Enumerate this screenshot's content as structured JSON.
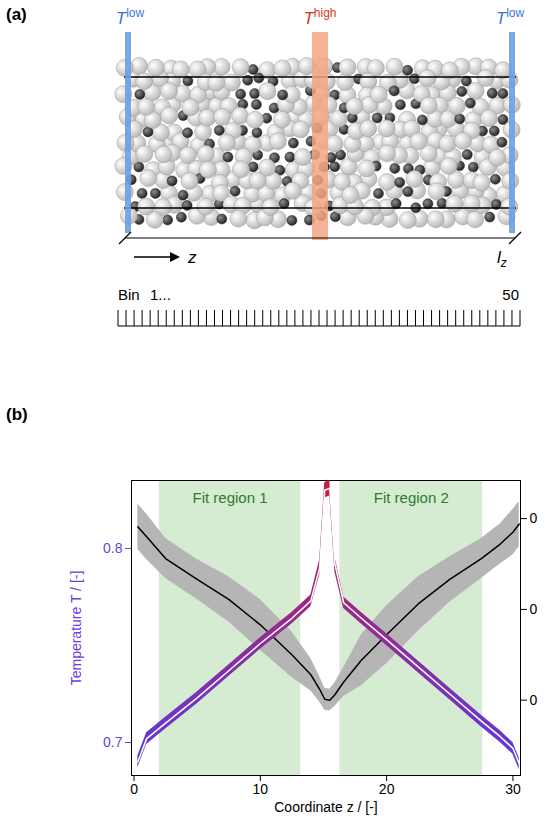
{
  "figure": {
    "panel_a": {
      "label": "(a)",
      "boundary_labels": [
        {
          "text": "T",
          "sup": "low"
        },
        {
          "text": "T",
          "sup": "high"
        },
        {
          "text": "T",
          "sup": "low"
        }
      ],
      "direction_label": "z",
      "length_label": {
        "text": "l",
        "sub": "z"
      },
      "bin_title": "Bin",
      "bin_first": "1...",
      "bin_count": 50
    },
    "panel_b_label": "(b)"
  },
  "chart_data": {
    "type": "line",
    "x_label": "Coordinate z / [-]",
    "y_label": "Temperature T / [-]",
    "xlim": [
      -0.2,
      30.6
    ],
    "xticks": [
      0,
      10,
      20,
      30
    ],
    "ylim": [
      0.683,
      0.835
    ],
    "yticks": [
      0.7,
      0.8
    ],
    "y2lim": [
      0.017,
      0.342
    ],
    "y2ticks": [
      {
        "value": 0.1,
        "label": "0"
      },
      {
        "value": 0.2,
        "label": "0"
      },
      {
        "value": 0.3,
        "label": "0"
      }
    ],
    "annotations": [
      {
        "text": "Fit region 1",
        "x_start": 2,
        "x_end": 13.2
      },
      {
        "text": "Fit region 2",
        "x_start": 16.3,
        "x_end": 27.6
      }
    ],
    "x": [
      0.3,
      1,
      2.5,
      5,
      7.5,
      10,
      12.5,
      14,
      14.7,
      15.1,
      15.5,
      15.9,
      16.6,
      18,
      20,
      22.5,
      25,
      27.5,
      29,
      30,
      30.5
    ],
    "series": [
      {
        "color": "#cc1a3f",
        "values": [
          0.69,
          0.702,
          0.71,
          0.723,
          0.737,
          0.751,
          0.764,
          0.773,
          0.79,
          0.83,
          0.831,
          0.792,
          0.772,
          0.764,
          0.753,
          0.739,
          0.725,
          0.711,
          0.703,
          0.697,
          0.689
        ],
        "lower": [
          0.687,
          0.699,
          0.707,
          0.72,
          0.734,
          0.748,
          0.761,
          0.77,
          0.786,
          0.826,
          0.827,
          0.788,
          0.769,
          0.761,
          0.75,
          0.736,
          0.722,
          0.708,
          0.7,
          0.694,
          0.686
        ],
        "upper": [
          0.693,
          0.705,
          0.713,
          0.726,
          0.74,
          0.754,
          0.767,
          0.776,
          0.794,
          0.834,
          0.835,
          0.796,
          0.775,
          0.767,
          0.756,
          0.742,
          0.728,
          0.714,
          0.706,
          0.7,
          0.692
        ]
      },
      {
        "color": "#000000",
        "axis": "y2",
        "values": [
          0.291,
          0.28,
          0.256,
          0.233,
          0.211,
          0.183,
          0.15,
          0.128,
          0.112,
          0.101,
          0.1,
          0.106,
          0.12,
          0.144,
          0.172,
          0.206,
          0.233,
          0.256,
          0.272,
          0.285,
          0.294
        ],
        "lower": [
          0.266,
          0.255,
          0.234,
          0.211,
          0.186,
          0.155,
          0.125,
          0.11,
          0.098,
          0.089,
          0.088,
          0.093,
          0.104,
          0.116,
          0.14,
          0.176,
          0.208,
          0.234,
          0.25,
          0.26,
          0.269
        ],
        "upper": [
          0.316,
          0.305,
          0.278,
          0.255,
          0.236,
          0.211,
          0.175,
          0.146,
          0.126,
          0.113,
          0.112,
          0.119,
          0.136,
          0.172,
          0.204,
          0.236,
          0.258,
          0.278,
          0.294,
          0.31,
          0.319
        ]
      }
    ]
  }
}
